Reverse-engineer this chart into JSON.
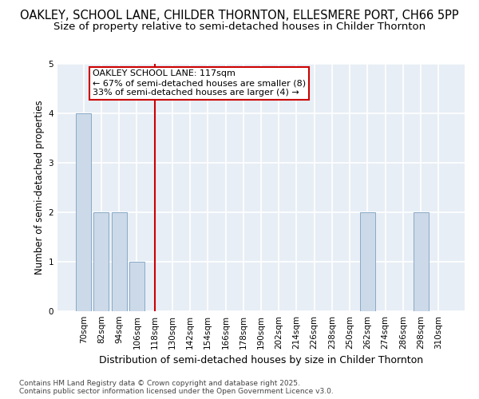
{
  "title": "OAKLEY, SCHOOL LANE, CHILDER THORNTON, ELLESMERE PORT, CH66 5PP",
  "subtitle": "Size of property relative to semi-detached houses in Childer Thornton",
  "xlabel": "Distribution of semi-detached houses by size in Childer Thornton",
  "ylabel": "Number of semi-detached properties",
  "categories": [
    "70sqm",
    "82sqm",
    "94sqm",
    "106sqm",
    "118sqm",
    "130sqm",
    "142sqm",
    "154sqm",
    "166sqm",
    "178sqm",
    "190sqm",
    "202sqm",
    "214sqm",
    "226sqm",
    "238sqm",
    "250sqm",
    "262sqm",
    "274sqm",
    "286sqm",
    "298sqm",
    "310sqm"
  ],
  "values": [
    4,
    2,
    2,
    1,
    0,
    0,
    0,
    0,
    0,
    0,
    0,
    0,
    0,
    0,
    0,
    0,
    2,
    0,
    0,
    2,
    0
  ],
  "bar_color": "#ccd9e8",
  "bar_edgecolor": "#88aac8",
  "subject_line_index": 4,
  "annotation_text_line1": "OAKLEY SCHOOL LANE: 117sqm",
  "annotation_text_line2": "← 67% of semi-detached houses are smaller (8)",
  "annotation_text_line3": "33% of semi-detached houses are larger (4) →",
  "annotation_box_color": "#cc0000",
  "ylim": [
    0,
    5
  ],
  "yticks": [
    0,
    1,
    2,
    3,
    4,
    5
  ],
  "background_color": "#e8eef5",
  "grid_color": "#ffffff",
  "footer": "Contains HM Land Registry data © Crown copyright and database right 2025.\nContains public sector information licensed under the Open Government Licence v3.0.",
  "title_fontsize": 10.5,
  "subtitle_fontsize": 9.5,
  "xlabel_fontsize": 9,
  "ylabel_fontsize": 8.5,
  "tick_fontsize": 7.5,
  "footer_fontsize": 6.5,
  "annotation_fontsize": 8
}
